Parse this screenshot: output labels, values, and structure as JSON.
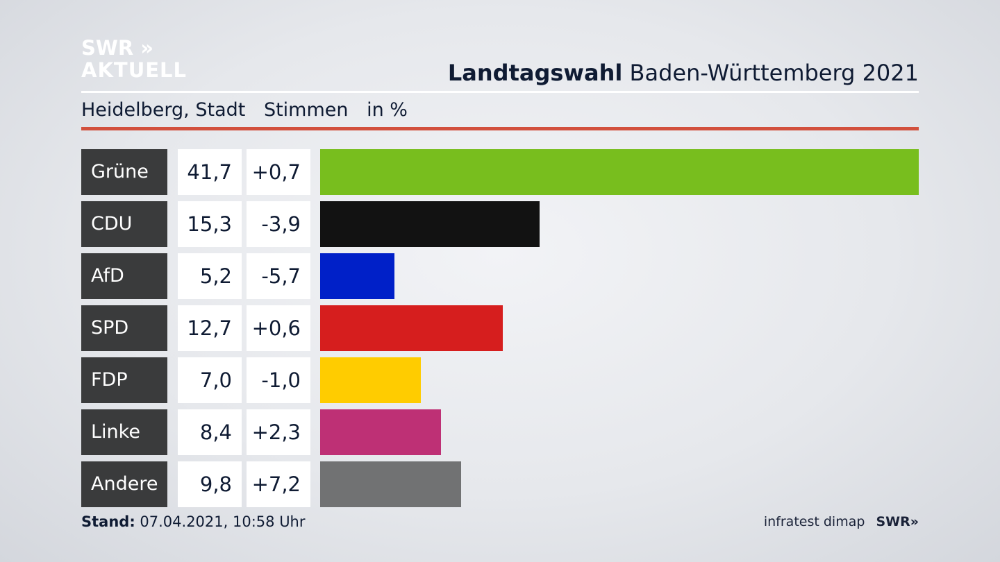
{
  "logo": {
    "line1": "SWR »",
    "line2": "AKTUELL"
  },
  "header": {
    "title_bold": "Landtagswahl",
    "title_rest": "Baden-Württemberg 2021"
  },
  "subheader": {
    "region": "Heidelberg, Stadt",
    "measure": "Stimmen",
    "unit": "in %"
  },
  "footer": {
    "stand_label": "Stand:",
    "stand_value": "07.04.2021, 10:58 Uhr",
    "source": "infratest dimap",
    "brand": "SWR»"
  },
  "colors": {
    "accent_red": "#d2503d",
    "party_label_bg": "#3a3b3c"
  },
  "chart_data": {
    "type": "bar",
    "orientation": "horizontal",
    "categories": [
      "Grüne",
      "CDU",
      "AfD",
      "SPD",
      "FDP",
      "Linke",
      "Andere"
    ],
    "values": [
      41.7,
      15.3,
      5.2,
      12.7,
      7.0,
      8.4,
      9.8
    ],
    "value_labels": [
      "41,7",
      "15,3",
      "5,2",
      "12,7",
      "7,0",
      "8,4",
      "9,8"
    ],
    "change_labels": [
      "+0,7",
      "-3,9",
      "-5,7",
      "+0,6",
      "-1,0",
      "+2,3",
      "+7,2"
    ],
    "changes": [
      0.7,
      -3.9,
      -5.7,
      0.6,
      -1.0,
      2.3,
      7.2
    ],
    "colors": [
      "#78be1e",
      "#121212",
      "#0020c8",
      "#d61e1e",
      "#ffcc00",
      "#be3075",
      "#717273"
    ],
    "xlim": [
      0,
      41.7
    ],
    "grid": false
  }
}
